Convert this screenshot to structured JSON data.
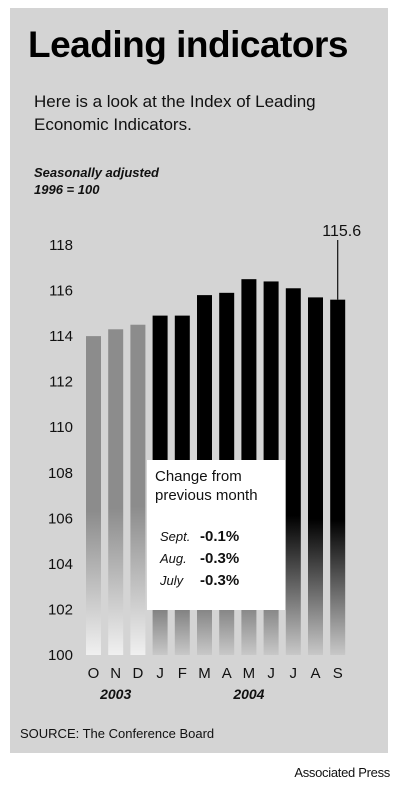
{
  "header": {
    "title": "Leading indicators",
    "subtitle": "Here is a look at the Index of Leading Economic Indicators.",
    "note_line1": "Seasonally adjusted",
    "note_line2": "1996 = 100"
  },
  "footer": {
    "source": "SOURCE: The Conference Board",
    "credit": "Associated Press"
  },
  "colors": {
    "panel": "#d4d4d4",
    "bar_2003": "#8c8c8c",
    "bar_2004": "#000000",
    "box": "#ffffff"
  },
  "chart_data": {
    "type": "bar",
    "categories": [
      "O",
      "N",
      "D",
      "J",
      "F",
      "M",
      "A",
      "M",
      "J",
      "J",
      "A",
      "S"
    ],
    "values": [
      114.0,
      114.3,
      114.5,
      114.9,
      114.9,
      115.8,
      115.9,
      116.5,
      116.4,
      116.1,
      115.7,
      115.6
    ],
    "year_groups": [
      {
        "label": "2003",
        "first": 0,
        "last": 2
      },
      {
        "label": "2004",
        "first": 3,
        "last": 11
      }
    ],
    "ylim": [
      100,
      118
    ],
    "yticks": [
      100,
      102,
      104,
      106,
      108,
      110,
      112,
      114,
      116,
      118
    ],
    "grid": false,
    "annotation": {
      "label": "115.6",
      "index": 11
    },
    "change_box": {
      "heading_line1": "Change from",
      "heading_line2": "previous month",
      "rows": [
        {
          "month": "Sept.",
          "value": "-0.1%"
        },
        {
          "month": "Aug.",
          "value": "-0.3%"
        },
        {
          "month": "July",
          "value": "-0.3%"
        }
      ]
    }
  }
}
